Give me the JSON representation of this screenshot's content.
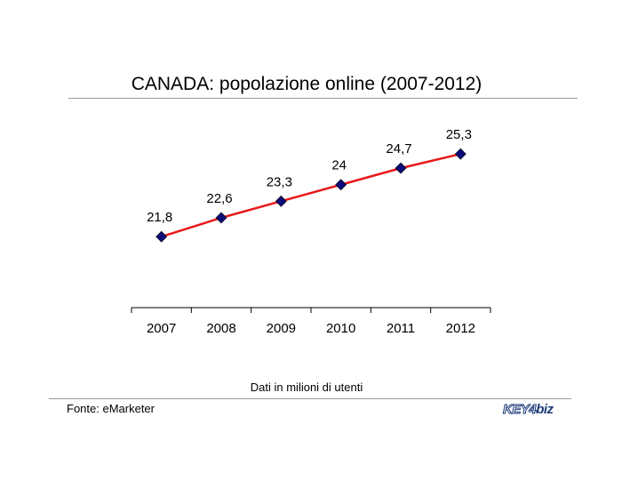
{
  "chart_data": {
    "type": "line",
    "title": "CANADA: popolazione online (2007-2012)",
    "categories": [
      "2007",
      "2008",
      "2009",
      "2010",
      "2011",
      "2012"
    ],
    "values": [
      21.8,
      22.6,
      23.3,
      24,
      24.7,
      25.3
    ],
    "value_labels": [
      "21,8",
      "22,6",
      "23,3",
      "24",
      "24,7",
      "25,3"
    ],
    "xlabel": "",
    "ylabel": "",
    "ylim": [
      18.8,
      27.3
    ],
    "grid": false,
    "line_color": "#e8191b",
    "marker_color": "#0b0b7a"
  },
  "note": "Dati in milioni di utenti",
  "source": "Fonte: eMarketer",
  "logo": {
    "part1": "KEY4",
    "part2": "biz"
  }
}
